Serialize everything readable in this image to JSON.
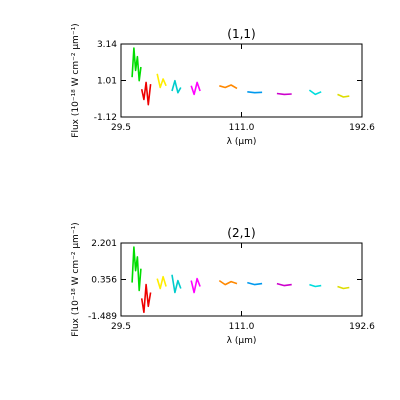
{
  "chart_data": [
    {
      "type": "line",
      "title": "(1,1)",
      "xlabel": "λ (μm)",
      "ylabel": "Flux (10⁻¹⁸ W cm⁻² μm⁻¹)",
      "xlim": [
        29.5,
        192.6
      ],
      "ylim": [
        -1.12,
        3.14
      ],
      "x_ticks": [
        "29.5",
        "111.0",
        "192.6"
      ],
      "y_ticks": [
        "-1.12",
        "1.01",
        "3.14"
      ],
      "grid": false,
      "series": [
        {
          "color": "#00dd00",
          "x": [
            37.0,
            38.2,
            39.4,
            40.6,
            41.8,
            43.0
          ],
          "y": [
            1.2,
            2.9,
            1.6,
            2.4,
            1.0,
            1.8
          ]
        },
        {
          "color": "#ee0000",
          "x": [
            43.5,
            45.0,
            46.5,
            48.0,
            49.5
          ],
          "y": [
            0.5,
            -0.1,
            0.9,
            -0.4,
            0.8
          ]
        },
        {
          "color": "#ffee00",
          "x": [
            54.0,
            56.0,
            58.0,
            60.0
          ],
          "y": [
            1.4,
            0.6,
            1.1,
            0.7
          ]
        },
        {
          "color": "#00cccc",
          "x": [
            64.0,
            66.0,
            68.0,
            70.0
          ],
          "y": [
            0.4,
            1.0,
            0.3,
            0.6
          ]
        },
        {
          "color": "#ff00ff",
          "x": [
            77.0,
            79.0,
            81.0,
            83.0
          ],
          "y": [
            0.7,
            0.2,
            0.9,
            0.4
          ]
        },
        {
          "color": "#ff8800",
          "x": [
            96.0,
            100.0,
            104.0,
            108.0
          ],
          "y": [
            0.7,
            0.6,
            0.75,
            0.55
          ]
        },
        {
          "color": "#0099ee",
          "x": [
            115.0,
            120.0,
            125.0
          ],
          "y": [
            0.35,
            0.3,
            0.32
          ]
        },
        {
          "color": "#cc00cc",
          "x": [
            135.0,
            140.0,
            145.0
          ],
          "y": [
            0.25,
            0.2,
            0.22
          ]
        },
        {
          "color": "#00dddd",
          "x": [
            157.0,
            161.0,
            165.0
          ],
          "y": [
            0.45,
            0.2,
            0.35
          ]
        },
        {
          "color": "#dddd00",
          "x": [
            176.0,
            180.0,
            184.0
          ],
          "y": [
            0.2,
            0.05,
            0.1
          ]
        }
      ]
    },
    {
      "type": "line",
      "title": "(2,1)",
      "xlabel": "λ (μm)",
      "ylabel": "Flux (10⁻¹⁸ W cm⁻² μm⁻¹)",
      "xlim": [
        29.5,
        192.6
      ],
      "ylim": [
        -1.489,
        2.201
      ],
      "x_ticks": [
        "29.5",
        "111.0",
        "192.6"
      ],
      "y_ticks": [
        "-1.489",
        "0.356",
        "2.201"
      ],
      "grid": false,
      "series": [
        {
          "color": "#00dd00",
          "x": [
            37.0,
            38.2,
            39.4,
            40.6,
            41.8,
            43.0
          ],
          "y": [
            0.2,
            2.0,
            0.8,
            1.5,
            -0.2,
            0.9
          ]
        },
        {
          "color": "#ee0000",
          "x": [
            43.5,
            45.0,
            46.5,
            48.0,
            49.5
          ],
          "y": [
            -0.6,
            -1.3,
            0.1,
            -1.0,
            -0.3
          ]
        },
        {
          "color": "#ffee00",
          "x": [
            54.0,
            56.0,
            58.0,
            60.0
          ],
          "y": [
            0.4,
            -0.1,
            0.5,
            0.0
          ]
        },
        {
          "color": "#00cccc",
          "x": [
            64.0,
            66.0,
            68.0,
            70.0
          ],
          "y": [
            0.6,
            -0.3,
            0.3,
            -0.1
          ]
        },
        {
          "color": "#ff00ff",
          "x": [
            77.0,
            79.0,
            81.0,
            83.0
          ],
          "y": [
            0.3,
            -0.3,
            0.4,
            0.0
          ]
        },
        {
          "color": "#ff8800",
          "x": [
            96.0,
            100.0,
            104.0,
            108.0
          ],
          "y": [
            0.3,
            0.1,
            0.25,
            0.15
          ]
        },
        {
          "color": "#0099ee",
          "x": [
            115.0,
            120.0,
            125.0
          ],
          "y": [
            0.2,
            0.1,
            0.15
          ]
        },
        {
          "color": "#cc00cc",
          "x": [
            135.0,
            140.0,
            145.0
          ],
          "y": [
            0.15,
            0.05,
            0.1
          ]
        },
        {
          "color": "#00dddd",
          "x": [
            157.0,
            161.0,
            165.0
          ],
          "y": [
            0.1,
            0.0,
            0.05
          ]
        },
        {
          "color": "#dddd00",
          "x": [
            176.0,
            180.0,
            184.0
          ],
          "y": [
            0.0,
            -0.1,
            -0.05
          ]
        }
      ]
    }
  ]
}
